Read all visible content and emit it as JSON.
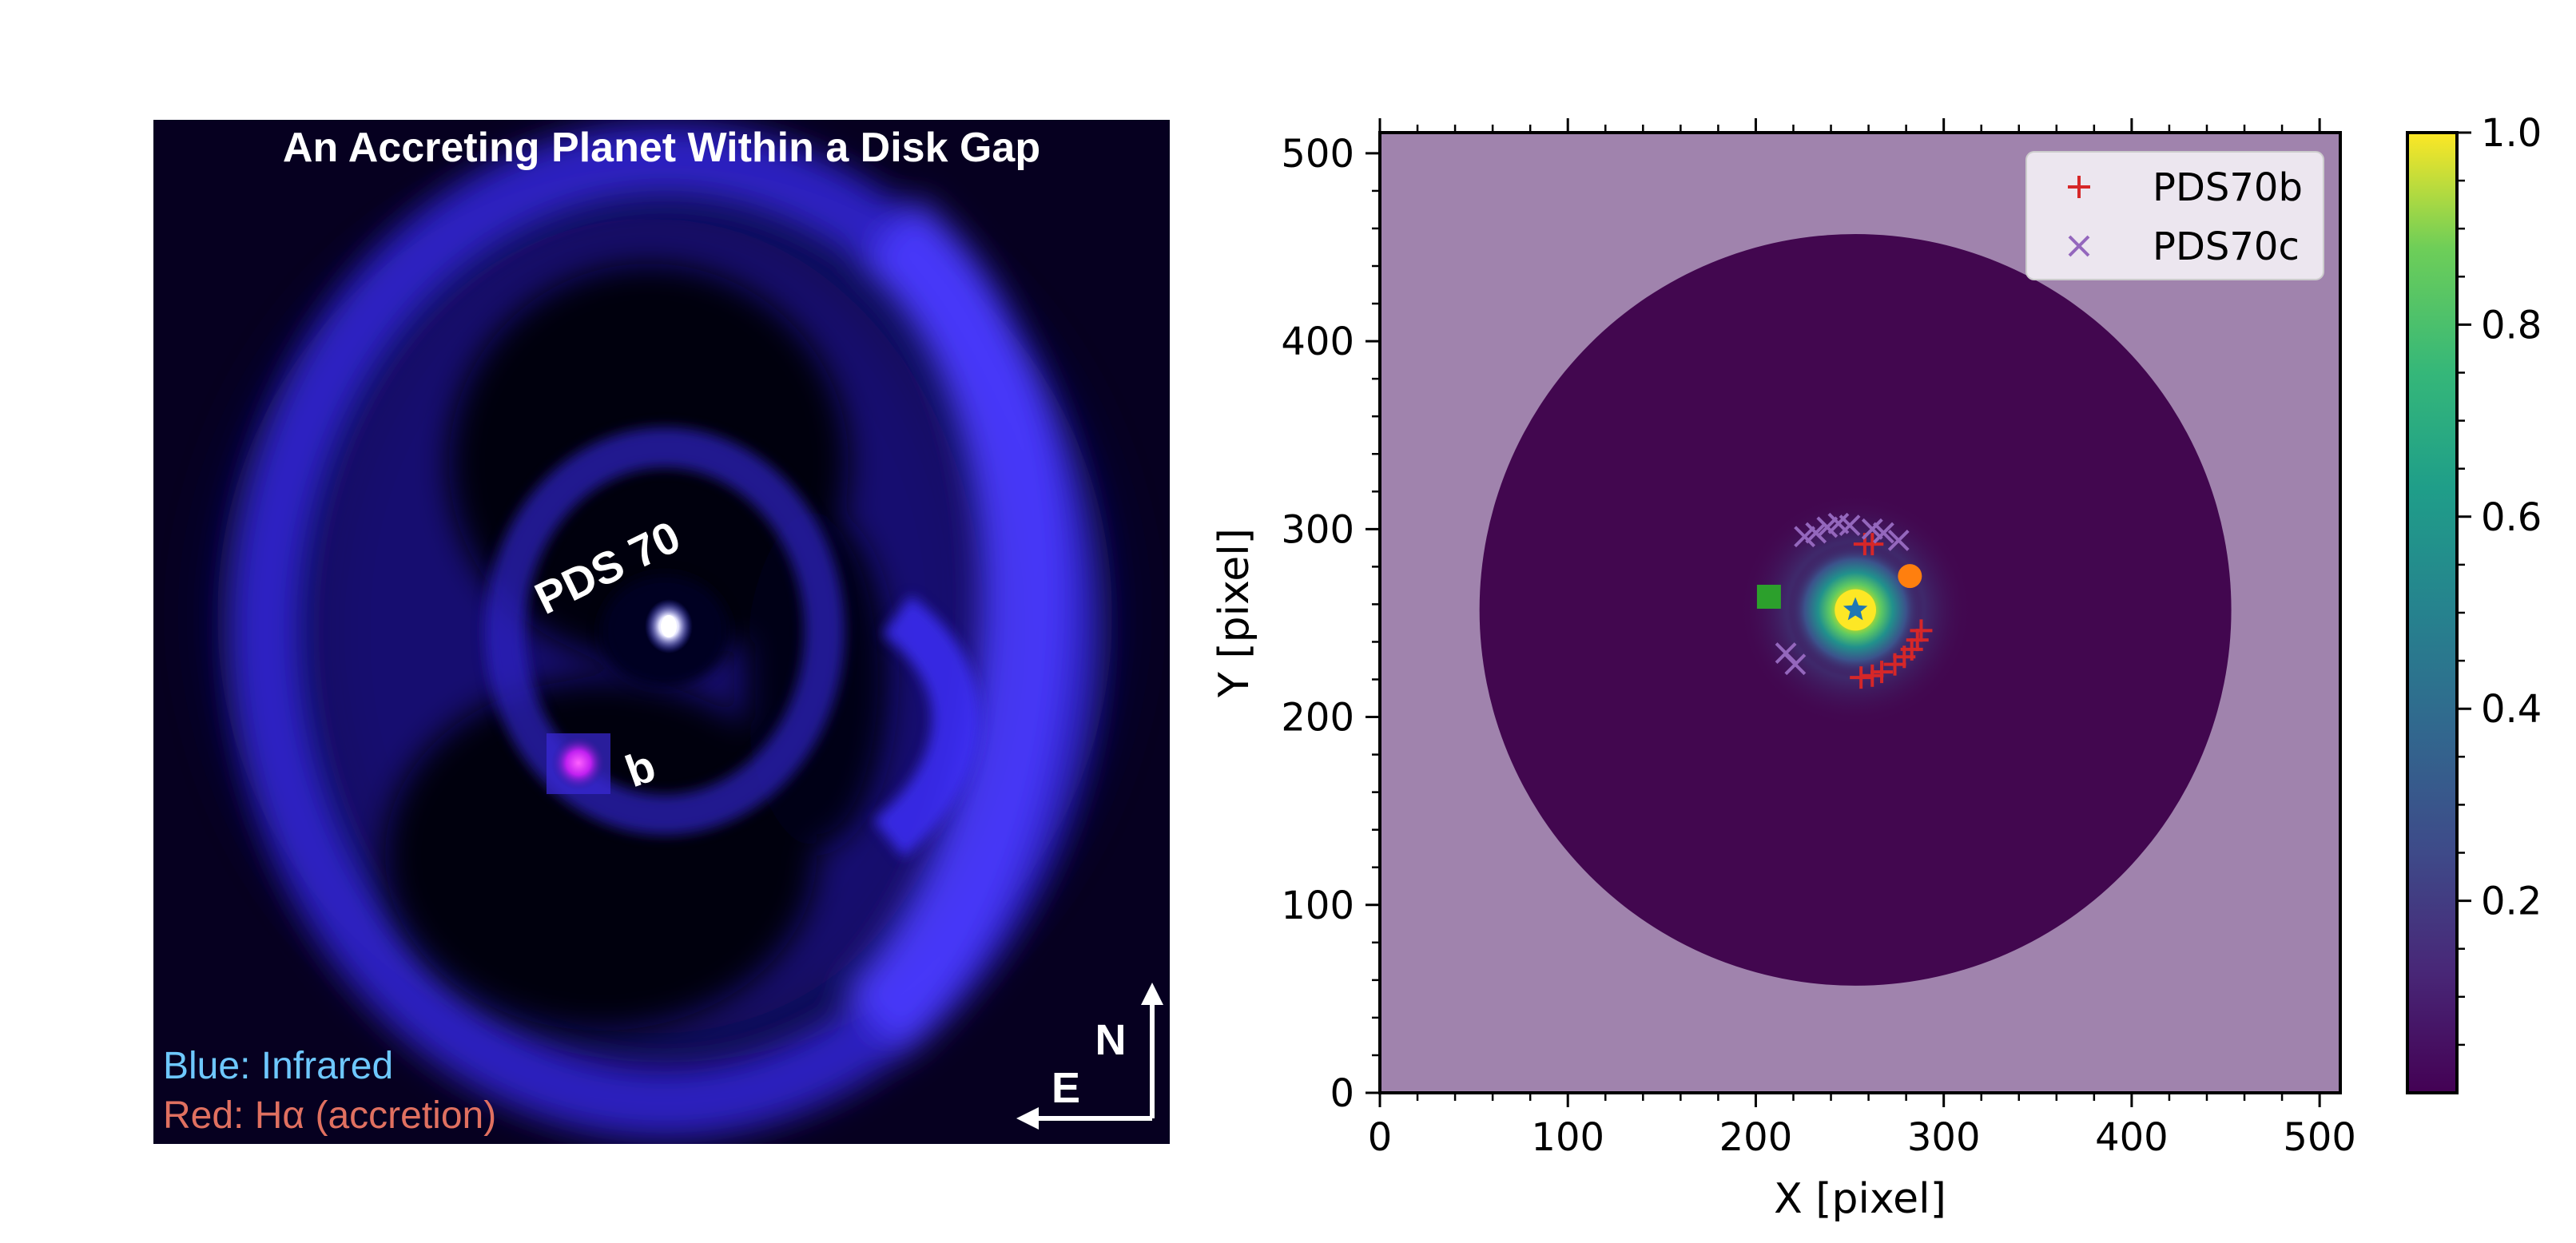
{
  "left_image": {
    "title": "An Accreting Planet Within a Disk Gap",
    "star_label": "PDS 70",
    "planet_label": "b",
    "legend_blue": "Blue: Infrared",
    "legend_red": "Red: Hα (accretion)",
    "compass_north": "N",
    "compass_east": "E",
    "colors": {
      "background": "#04001a",
      "disk": "#3a2cff",
      "planet": "#e020ff",
      "blue_text": "#6ec8ff",
      "red_text": "#e07060"
    }
  },
  "chart_data": {
    "type": "scatter",
    "xlabel": "X [pixel]",
    "ylabel": "Y [pixel]",
    "xlim": [
      0,
      511
    ],
    "ylim": [
      0,
      511
    ],
    "x_ticks": [
      0,
      100,
      200,
      300,
      400,
      500
    ],
    "y_ticks": [
      0,
      100,
      200,
      300,
      400,
      500
    ],
    "image": {
      "background_color": "#a083ad",
      "disk_color": "#42074f",
      "disk_center": [
        253,
        257
      ],
      "disk_radius": 200,
      "star_position": [
        253,
        257
      ]
    },
    "series": [
      {
        "name": "PDS70b",
        "marker": "+",
        "color": "#d62728",
        "x": [
          258,
          262,
          256,
          262,
          267,
          274,
          279,
          283,
          286,
          288
        ],
        "y": [
          292,
          292,
          221,
          222,
          224,
          228,
          232,
          236,
          241,
          246
        ]
      },
      {
        "name": "PDS70c",
        "marker": "x",
        "color": "#9467bd",
        "x": [
          226,
          232,
          238,
          244,
          250,
          262,
          268,
          276,
          216,
          221
        ],
        "y": [
          296,
          298,
          301,
          303,
          302,
          300,
          298,
          294,
          234,
          228
        ]
      }
    ],
    "extra_markers": [
      {
        "shape": "star",
        "color": "#1f77b4",
        "x": 253,
        "y": 257
      },
      {
        "shape": "square",
        "color": "#2ca02c",
        "x": 207,
        "y": 264
      },
      {
        "shape": "circle",
        "color": "#ff7f0e",
        "x": 282,
        "y": 275
      }
    ],
    "legend_position": "upper right",
    "colorbar": {
      "colormap": "viridis",
      "ticks": [
        0.2,
        0.4,
        0.6,
        0.8,
        1.0
      ],
      "tick_labels": [
        "0.2",
        "0.4",
        "0.6",
        "0.8",
        "1.0"
      ],
      "range": [
        0,
        1
      ]
    }
  }
}
